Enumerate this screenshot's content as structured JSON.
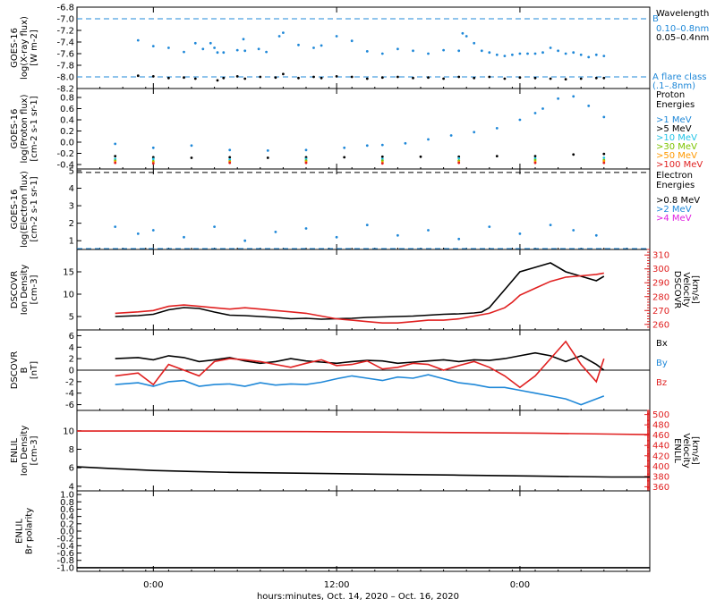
{
  "xlabel": "hours:minutes, Oct. 14, 2020 – Oct. 16, 2020",
  "chart_data": [
    {
      "id": "xray",
      "type": "scatter",
      "ylabel_lines": [
        "GOES-16",
        "log(X-ray flux)",
        "[W m-2]"
      ],
      "yticks": [
        "-6.8",
        "-7.0",
        "-7.2",
        "-7.4",
        "-7.6",
        "-7.8",
        "-8.0",
        "-8.2"
      ],
      "yrange": [
        -8.2,
        -6.8
      ],
      "legend_title": [
        "Wavelength"
      ],
      "legend": [
        {
          "label": "0.10–0.8nm",
          "color": "#1f88d8"
        },
        {
          "label": "0.05–0.4nm",
          "color": "#000000"
        }
      ],
      "annotations": [
        {
          "label": "B",
          "y": -7.0,
          "color": "#1f88d8"
        },
        {
          "label": "A  flare class",
          "y": -8.0,
          "color": "#1f88d8"
        },
        {
          "label": "(.1–.8nm)",
          "y": -8.0,
          "color": "#1f88d8"
        }
      ],
      "series": [
        {
          "color": "#1f88d8",
          "x": [
            -2,
            0,
            2,
            4,
            5.5,
            6.5,
            7.5,
            8,
            8.4,
            9.2,
            11,
            11.8,
            12,
            13.8,
            14.8,
            16.5,
            17,
            19,
            21,
            22,
            24,
            26,
            28,
            30,
            32,
            34,
            36,
            38,
            40,
            40.5,
            41,
            42,
            43,
            44,
            45,
            46,
            47,
            48,
            49,
            50,
            51,
            52,
            53,
            54,
            55,
            56,
            57,
            58,
            59
          ],
          "y": [
            -7.37,
            -7.47,
            -7.5,
            -7.57,
            -7.42,
            -7.52,
            -7.42,
            -7.5,
            -7.58,
            -7.58,
            -7.54,
            -7.35,
            -7.55,
            -7.52,
            -7.57,
            -7.3,
            -7.24,
            -7.45,
            -7.5,
            -7.46,
            -7.3,
            -7.38,
            -7.56,
            -7.6,
            -7.52,
            -7.55,
            -7.6,
            -7.54,
            -7.55,
            -7.25,
            -7.3,
            -7.42,
            -7.55,
            -7.58,
            -7.62,
            -7.64,
            -7.62,
            -7.6,
            -7.6,
            -7.6,
            -7.58,
            -7.5,
            -7.55,
            -7.6,
            -7.58,
            -7.62,
            -7.66,
            -7.62,
            -7.64
          ]
        },
        {
          "color": "#000000",
          "x": [
            -2,
            0,
            2,
            4,
            5.5,
            8.4,
            9.2,
            11,
            12,
            14,
            16,
            17,
            19,
            21,
            22,
            24,
            26,
            28,
            30,
            32,
            34,
            36,
            38,
            40,
            42,
            44,
            46,
            48,
            50,
            52,
            54,
            56,
            58,
            59
          ],
          "y": [
            -7.98,
            -7.99,
            -8.02,
            -8.01,
            -8.03,
            -8.06,
            -8.02,
            -7.99,
            -8.03,
            -8.0,
            -8.01,
            -7.95,
            -8.02,
            -8.0,
            -8.02,
            -7.99,
            -8.0,
            -8.03,
            -8.01,
            -8.0,
            -8.02,
            -8.01,
            -8.03,
            -8.0,
            -8.02,
            -8.0,
            -8.03,
            -8.01,
            -8.02,
            -8.03,
            -8.04,
            -8.03,
            -8.02,
            -8.02
          ]
        }
      ]
    },
    {
      "id": "proton",
      "type": "scatter",
      "ylabel_lines": [
        "GOES-16",
        "log(Proton flux)",
        "[cm-2 s-1 sr-1]"
      ],
      "yticks": [
        "0.8",
        "0.6",
        "0.4",
        "0.2",
        "0.0",
        "-0.2",
        "-0.4"
      ],
      "yrange": [
        -0.48,
        0.96
      ],
      "legend_title": [
        "Proton",
        "Energies"
      ],
      "legend": [
        {
          "label": ">1 MeV",
          "color": "#1f88d8"
        },
        {
          "label": ">5 MeV",
          "color": "#000000"
        },
        {
          "label": ">10 MeV",
          "color": "#22c4e6"
        },
        {
          "label": ">30 MeV",
          "color": "#7cc400"
        },
        {
          "label": ">50 MeV",
          "color": "#ff9900"
        },
        {
          "label": ">100 MeV",
          "color": "#e02020"
        }
      ],
      "series": [
        {
          "color": "#1f88d8",
          "x": [
            -5,
            0,
            5,
            10,
            15,
            20,
            25,
            28,
            30,
            33,
            36,
            39,
            42,
            45,
            48,
            50,
            51,
            53,
            55,
            57,
            59
          ],
          "y": [
            -0.03,
            -0.1,
            -0.06,
            -0.14,
            -0.15,
            -0.14,
            -0.1,
            -0.06,
            -0.05,
            -0.02,
            0.05,
            0.12,
            0.18,
            0.25,
            0.4,
            0.52,
            0.6,
            0.78,
            0.82,
            0.65,
            0.45
          ]
        },
        {
          "color": "#000000",
          "x": [
            -5,
            0,
            5,
            10,
            15,
            20,
            25,
            30,
            35,
            40,
            45,
            50,
            55,
            59
          ],
          "y": [
            -0.25,
            -0.27,
            -0.28,
            -0.27,
            -0.28,
            -0.27,
            -0.27,
            -0.26,
            -0.26,
            -0.26,
            -0.25,
            -0.25,
            -0.22,
            -0.21
          ]
        },
        {
          "color": "#22c4e6",
          "x": [
            -5,
            0,
            10,
            20,
            30,
            40,
            50,
            59
          ],
          "y": [
            -0.3,
            -0.3,
            -0.31,
            -0.3,
            -0.3,
            -0.29,
            -0.29,
            -0.28
          ]
        },
        {
          "color": "#7cc400",
          "x": [
            -5,
            0,
            10,
            20,
            30,
            40,
            50,
            59
          ],
          "y": [
            -0.33,
            -0.34,
            -0.34,
            -0.33,
            -0.33,
            -0.33,
            -0.32,
            -0.32
          ]
        },
        {
          "color": "#ff9900",
          "x": [
            -5,
            0,
            10,
            20,
            30,
            40,
            50,
            59
          ],
          "y": [
            -0.35,
            -0.36,
            -0.35,
            -0.35,
            -0.36,
            -0.35,
            -0.35,
            -0.34
          ]
        },
        {
          "color": "#e02020",
          "x": [
            -5,
            0,
            10,
            20,
            30,
            40,
            50,
            59
          ],
          "y": [
            -0.37,
            -0.38,
            -0.37,
            -0.37,
            -0.38,
            -0.37,
            -0.37,
            -0.37
          ]
        }
      ]
    },
    {
      "id": "electron",
      "type": "scatter",
      "ylabel_lines": [
        "GOES-16",
        "log(Electron flux)",
        "[cm-2 s-1 sr-1]"
      ],
      "yticks": [
        "5",
        "4",
        "3",
        "2",
        "1"
      ],
      "yrange": [
        0.5,
        5.1
      ],
      "legend_title": [
        "Electron",
        "Energies"
      ],
      "legend": [
        {
          "label": ">0.8 MeV",
          "color": "#000000"
        },
        {
          "label": ">2 MeV",
          "color": "#1f88d8"
        },
        {
          "label": ">4 MeV",
          "color": "#e020e0"
        }
      ],
      "hlines": [
        {
          "y": 4.9,
          "color": "#000000",
          "dash": true
        },
        {
          "y": 0.55,
          "color": "#1f88d8",
          "dash": true
        }
      ],
      "series": [
        {
          "color": "#1f88d8",
          "x": [
            -5,
            -2,
            0,
            4,
            8,
            12,
            16,
            20,
            24,
            28,
            32,
            36,
            40,
            44,
            48,
            52,
            55,
            58
          ],
          "y": [
            1.8,
            1.4,
            1.6,
            1.2,
            1.8,
            1.0,
            1.5,
            1.7,
            1.2,
            1.9,
            1.3,
            1.6,
            1.1,
            1.8,
            1.4,
            1.9,
            1.6,
            1.3
          ]
        }
      ]
    },
    {
      "id": "dscovr-density",
      "type": "line",
      "ylabel_lines": [
        "DSCOVR",
        "Ion Density",
        "[cm-3]"
      ],
      "yticks": [
        "15",
        "10",
        "5"
      ],
      "yrange": [
        2,
        20
      ],
      "right_ylabel_lines": [
        "DSCOVR",
        "Velocity",
        "[km/s]"
      ],
      "right_yticks": [
        "310",
        "300",
        "290",
        "280",
        "270",
        "260"
      ],
      "right_yrange": [
        256,
        314
      ],
      "series": [
        {
          "name": "density",
          "color": "#000000",
          "axis": "left",
          "x": [
            -5,
            -2,
            0,
            2,
            4,
            6,
            8,
            10,
            12,
            14,
            16,
            18,
            20,
            22,
            24,
            26,
            28,
            30,
            32,
            34,
            36,
            38,
            40,
            42,
            43,
            44,
            45,
            46,
            47,
            48,
            50,
            52,
            54,
            56,
            58,
            59
          ],
          "y": [
            5,
            5.2,
            5.5,
            6.5,
            7,
            6.8,
            6,
            5.3,
            5.2,
            5,
            4.8,
            4.5,
            4.6,
            4.4,
            4.5,
            4.6,
            4.8,
            4.9,
            5,
            5.1,
            5.3,
            5.5,
            5.6,
            5.8,
            6,
            7,
            9,
            11,
            13,
            15,
            16,
            17,
            15,
            14,
            13,
            14
          ]
        },
        {
          "name": "velocity",
          "color": "#e02020",
          "axis": "right",
          "x": [
            -5,
            -2,
            0,
            2,
            4,
            6,
            8,
            10,
            12,
            14,
            16,
            18,
            20,
            22,
            24,
            26,
            28,
            30,
            32,
            34,
            36,
            38,
            40,
            42,
            44,
            46,
            47,
            48,
            50,
            52,
            54,
            56,
            58,
            59
          ],
          "y": [
            268,
            269,
            270,
            273,
            274,
            273,
            272,
            271,
            272,
            271,
            270,
            269,
            268,
            266,
            264,
            263,
            262,
            261,
            261,
            262,
            263,
            263,
            264,
            266,
            268,
            272,
            276,
            281,
            286,
            291,
            294,
            295,
            296,
            297
          ]
        }
      ]
    },
    {
      "id": "dscovr-b",
      "type": "line",
      "ylabel_lines": [
        "DSCOVR",
        "B",
        "[nT]"
      ],
      "yticks": [
        "6",
        "4",
        "2",
        "0",
        "-2",
        "-4",
        "-6"
      ],
      "yrange": [
        -7,
        7
      ],
      "zero_line": true,
      "legend": [
        {
          "label": "Bx",
          "color": "#000000"
        },
        {
          "label": "By",
          "color": "#1f88d8"
        },
        {
          "label": "Bz",
          "color": "#e02020"
        }
      ],
      "series": [
        {
          "name": "Bx",
          "color": "#000000",
          "x": [
            -5,
            -2,
            0,
            2,
            4,
            6,
            8,
            10,
            12,
            14,
            16,
            18,
            20,
            22,
            24,
            26,
            28,
            30,
            32,
            34,
            36,
            38,
            40,
            42,
            44,
            46,
            48,
            50,
            52,
            54,
            56,
            58,
            59
          ],
          "y": [
            2,
            2.2,
            1.8,
            2.5,
            2.2,
            1.5,
            1.8,
            2.2,
            1.6,
            1.2,
            1.5,
            2,
            1.6,
            1.4,
            1.2,
            1.5,
            1.7,
            1.6,
            1.2,
            1.4,
            1.6,
            1.8,
            1.5,
            1.8,
            1.7,
            2,
            2.5,
            3,
            2.5,
            1.5,
            2.5,
            1,
            0
          ]
        },
        {
          "name": "By",
          "color": "#1f88d8",
          "x": [
            -5,
            -2,
            0,
            2,
            4,
            6,
            8,
            10,
            12,
            14,
            16,
            18,
            20,
            22,
            24,
            26,
            28,
            30,
            32,
            34,
            36,
            38,
            40,
            42,
            44,
            46,
            48,
            50,
            52,
            54,
            56,
            58,
            59
          ],
          "y": [
            -2.5,
            -2.2,
            -2.8,
            -2,
            -1.8,
            -2.8,
            -2.5,
            -2.4,
            -2.8,
            -2.2,
            -2.6,
            -2.4,
            -2.5,
            -2.1,
            -1.5,
            -1,
            -1.4,
            -1.8,
            -1.2,
            -1.4,
            -0.8,
            -1.5,
            -2.2,
            -2.5,
            -3,
            -3,
            -3.5,
            -4,
            -4.5,
            -5,
            -6,
            -5,
            -4.5
          ]
        },
        {
          "name": "Bz",
          "color": "#e02020",
          "x": [
            -5,
            -2,
            0,
            2,
            4,
            6,
            8,
            10,
            12,
            14,
            16,
            18,
            20,
            22,
            24,
            26,
            28,
            30,
            32,
            34,
            36,
            38,
            40,
            42,
            44,
            46,
            48,
            50,
            52,
            54,
            56,
            58,
            59
          ],
          "y": [
            -1,
            -0.5,
            -2.5,
            1,
            0,
            -1,
            1.5,
            2,
            1.8,
            1.5,
            1,
            0.5,
            1.2,
            1.8,
            0.8,
            1,
            1.6,
            0.2,
            0.5,
            1.2,
            1,
            0,
            0.8,
            1.5,
            0.5,
            -1,
            -3,
            -1,
            2,
            5,
            1,
            -2,
            2
          ]
        }
      ]
    },
    {
      "id": "enlil-density",
      "type": "line",
      "ylabel_lines": [
        "ENLIL",
        "Ion Density",
        "[cm-3]"
      ],
      "yticks": [
        "10",
        "8",
        "6",
        "4"
      ],
      "yrange": [
        3.5,
        12.2
      ],
      "right_ylabel_lines": [
        "ENLIL",
        "Velocity",
        "[km/s]"
      ],
      "right_yticks": [
        "500",
        "480",
        "460",
        "440",
        "420",
        "400",
        "380",
        "360"
      ],
      "right_yrange": [
        352,
        508
      ],
      "series": [
        {
          "name": "density",
          "color": "#000000",
          "axis": "left",
          "x": [
            -10,
            -5,
            0,
            5,
            10,
            20,
            30,
            40,
            50,
            60,
            65
          ],
          "y": [
            6.1,
            5.9,
            5.7,
            5.6,
            5.5,
            5.4,
            5.3,
            5.2,
            5.1,
            5.0,
            5.0
          ]
        },
        {
          "name": "velocity",
          "color": "#e02020",
          "axis": "right",
          "x": [
            -10,
            0,
            10,
            20,
            30,
            40,
            50,
            60,
            65
          ],
          "y": [
            468,
            468,
            467.5,
            467,
            466,
            465,
            464,
            462,
            461
          ]
        }
      ]
    },
    {
      "id": "enlil-polarity",
      "type": "line",
      "ylabel_lines": [
        "ENLIL",
        "Br polarity"
      ],
      "yticks": [
        "1.0",
        "0.8",
        "0.6",
        "0.4",
        "0.2",
        "0.0",
        "-0.2",
        "-0.4",
        "-0.6",
        "-0.8",
        "-1.0"
      ],
      "yrange": [
        -1.1,
        1.1
      ],
      "series": [
        {
          "name": "polarity",
          "color": "#000000",
          "x": [
            -10,
            65
          ],
          "y": [
            -1.0,
            -1.0
          ]
        }
      ]
    }
  ],
  "x_axis": {
    "range": [
      -10,
      65
    ],
    "ticks": [
      {
        "value": 0,
        "label": "0:00"
      },
      {
        "value": 24,
        "label": "12:00"
      },
      {
        "value": 48,
        "label": "0:00"
      }
    ]
  }
}
